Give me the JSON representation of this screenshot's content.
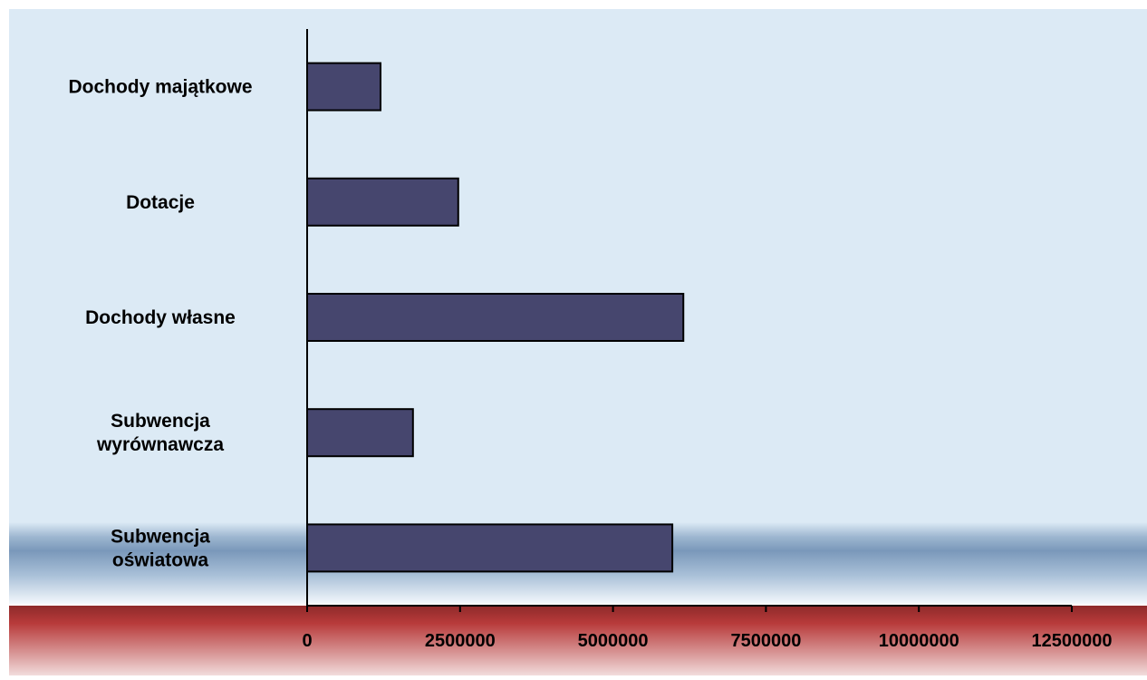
{
  "chart_data": {
    "type": "bar",
    "orientation": "horizontal",
    "categories": [
      "Dochody majątkowe",
      "Dotacje",
      "Dochody własne",
      "Subwencja wyrównawcza",
      "Subwencja oświatowa"
    ],
    "category_lines": [
      [
        "Dochody majątkowe"
      ],
      [
        "Dotacje"
      ],
      [
        "Dochody własne"
      ],
      [
        "Subwencja",
        "wyrównawcza"
      ],
      [
        "Subwencja",
        "oświatowa"
      ]
    ],
    "values": [
      1200000,
      2470000,
      6150000,
      1730000,
      5970000
    ],
    "xlim": [
      0,
      12500000
    ],
    "xticks": [
      0,
      2500000,
      5000000,
      7500000,
      10000000,
      12500000
    ],
    "xtick_labels": [
      "0",
      "2500000",
      "5000000",
      "7500000",
      "10000000",
      "12500000"
    ],
    "grid": false,
    "legend": "none",
    "title": "",
    "xlabel": "",
    "ylabel": ""
  },
  "colors": {
    "bar_fill": "#46466E",
    "bar_stroke": "#000000",
    "plot_background": "#DCEAF5",
    "band_blue": "#7A98BA",
    "band_red": "#B83A3A",
    "axis": "#000000"
  }
}
